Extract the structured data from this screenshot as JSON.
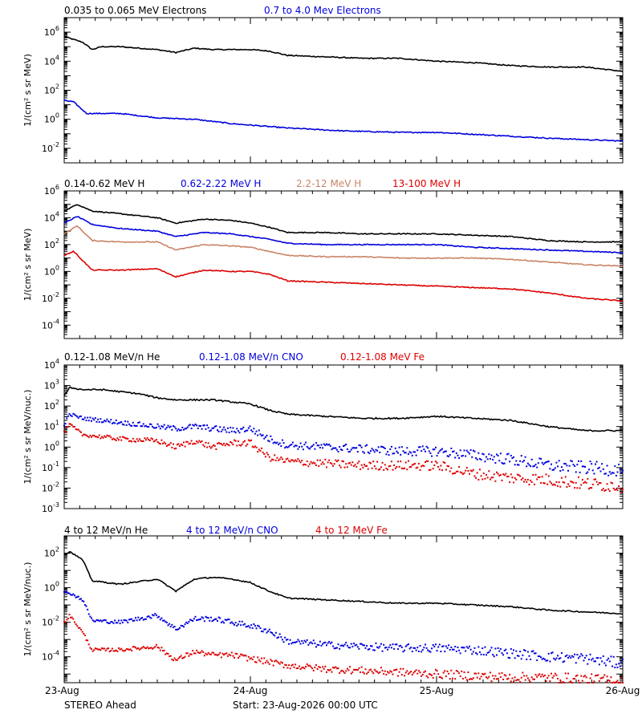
{
  "footer": {
    "spacecraft": "STEREO Ahead",
    "start": "Start: 23-Aug-2026 00:00 UTC"
  },
  "x_axis": {
    "ticks": [
      "23-Aug",
      "24-Aug",
      "25-Aug",
      "26-Aug"
    ],
    "range_days": [
      0,
      3
    ]
  },
  "colors": {
    "black": "#000000",
    "blue": "#0000dd",
    "tan": "#c88466",
    "red": "#dd0000"
  },
  "chart_data": [
    {
      "type": "line",
      "ylabel": "1/(cm² s sr MeV)",
      "ylim_log10": [
        -3,
        7
      ],
      "yticks": [
        -2,
        0,
        2,
        4,
        6
      ],
      "series": [
        {
          "name": "0.035 to 0.065 MeV Electrons",
          "color": "#000000",
          "style": "line",
          "x": [
            0,
            0.1,
            0.15,
            0.2,
            0.3,
            0.5,
            0.6,
            0.7,
            0.8,
            1.0,
            1.1,
            1.2,
            1.4,
            1.6,
            1.8,
            2.0,
            2.2,
            2.4,
            2.6,
            2.8,
            3.0
          ],
          "y": [
            5.7,
            5.3,
            4.8,
            5.0,
            5.0,
            4.8,
            4.6,
            4.9,
            4.8,
            4.8,
            4.7,
            4.4,
            4.3,
            4.2,
            4.2,
            4.0,
            3.9,
            3.7,
            3.6,
            3.6,
            3.3
          ]
        },
        {
          "name": "0.7 to 4.0 Mev Electrons",
          "color": "#0000dd",
          "style": "line",
          "x": [
            0,
            0.05,
            0.12,
            0.2,
            0.3,
            0.5,
            0.7,
            0.9,
            1.0,
            1.2,
            1.5,
            1.8,
            2.0,
            2.3,
            2.6,
            2.8,
            3.0
          ],
          "y": [
            1.3,
            1.2,
            0.4,
            0.4,
            0.4,
            0.1,
            0.0,
            -0.3,
            -0.4,
            -0.6,
            -0.8,
            -0.9,
            -0.9,
            -1.1,
            -1.3,
            -1.4,
            -1.5
          ]
        }
      ]
    },
    {
      "type": "line",
      "ylabel": "1/(cm² s sr MeV)",
      "ylim_log10": [
        -5,
        6
      ],
      "yticks": [
        -4,
        -2,
        0,
        2,
        4,
        6
      ],
      "series": [
        {
          "name": "0.14-0.62 MeV H",
          "color": "#000000",
          "style": "line",
          "x": [
            0,
            0.07,
            0.15,
            0.3,
            0.5,
            0.6,
            0.75,
            0.9,
            1.0,
            1.1,
            1.2,
            1.4,
            1.6,
            1.8,
            2.0,
            2.2,
            2.4,
            2.6,
            2.8,
            3.0
          ],
          "y": [
            4.5,
            5.0,
            4.5,
            4.3,
            4.0,
            3.6,
            3.9,
            3.8,
            3.6,
            3.3,
            2.9,
            2.9,
            2.8,
            2.8,
            2.8,
            2.7,
            2.6,
            2.3,
            2.2,
            2.2
          ]
        },
        {
          "name": "0.62-2.22 MeV H",
          "color": "#0000dd",
          "style": "line",
          "x": [
            0,
            0.07,
            0.15,
            0.3,
            0.5,
            0.6,
            0.75,
            0.9,
            1.0,
            1.1,
            1.2,
            1.4,
            1.6,
            1.8,
            2.0,
            2.2,
            2.4,
            2.6,
            2.8,
            3.0
          ],
          "y": [
            3.6,
            4.1,
            3.5,
            3.2,
            3.0,
            2.6,
            2.9,
            2.8,
            2.6,
            2.4,
            2.1,
            2.0,
            2.0,
            2.0,
            2.0,
            1.8,
            1.7,
            1.6,
            1.5,
            1.4
          ]
        },
        {
          "name": "2.2-12 MeV H",
          "color": "#c88466",
          "style": "line",
          "x": [
            0,
            0.07,
            0.15,
            0.3,
            0.5,
            0.6,
            0.75,
            0.9,
            1.0,
            1.1,
            1.2,
            1.4,
            1.6,
            1.8,
            2.0,
            2.2,
            2.4,
            2.6,
            2.8,
            3.0
          ],
          "y": [
            2.8,
            3.4,
            2.3,
            2.2,
            2.2,
            1.6,
            2.0,
            1.9,
            1.8,
            1.5,
            1.2,
            1.1,
            1.1,
            1.0,
            1.0,
            1.0,
            0.9,
            0.7,
            0.5,
            0.4
          ]
        },
        {
          "name": "13-100 MeV H",
          "color": "#dd0000",
          "style": "line",
          "x": [
            0,
            0.05,
            0.15,
            0.3,
            0.5,
            0.6,
            0.75,
            0.9,
            1.0,
            1.1,
            1.2,
            1.4,
            1.6,
            1.8,
            2.0,
            2.2,
            2.4,
            2.6,
            2.8,
            3.0
          ],
          "y": [
            1.2,
            1.5,
            0.1,
            0.1,
            0.2,
            -0.4,
            0.1,
            0.0,
            0.0,
            -0.2,
            -0.7,
            -0.8,
            -0.9,
            -1.0,
            -1.1,
            -1.2,
            -1.3,
            -1.6,
            -2.0,
            -2.2
          ]
        }
      ]
    },
    {
      "type": "scatter",
      "ylabel": "1/(cm² s sr MeV/nuc.)",
      "ylim_log10": [
        -3,
        4
      ],
      "yticks": [
        -3,
        -2,
        -1,
        0,
        1,
        2,
        3,
        4
      ],
      "series": [
        {
          "name": "0.12-1.08 MeV/n He",
          "color": "#000000",
          "style": "line",
          "x": [
            0,
            0.03,
            0.1,
            0.2,
            0.3,
            0.4,
            0.5,
            0.6,
            0.7,
            0.8,
            0.9,
            1.0,
            1.1,
            1.2,
            1.4,
            1.6,
            1.8,
            2.0,
            2.2,
            2.4,
            2.6,
            2.8,
            3.0
          ],
          "y": [
            2.5,
            2.9,
            2.8,
            2.8,
            2.7,
            2.6,
            2.4,
            2.3,
            2.3,
            2.3,
            2.2,
            2.1,
            1.8,
            1.6,
            1.5,
            1.4,
            1.4,
            1.5,
            1.4,
            1.3,
            1.0,
            0.8,
            0.8
          ]
        },
        {
          "name": "0.12-1.08 MeV/n CNO",
          "color": "#0000dd",
          "style": "dots",
          "x": [
            0,
            0.03,
            0.1,
            0.2,
            0.3,
            0.5,
            0.6,
            0.7,
            0.8,
            0.9,
            1.0,
            1.1,
            1.2,
            1.4,
            1.6,
            1.8,
            2.0,
            2.2,
            2.4,
            2.6,
            2.8,
            3.0
          ],
          "y": [
            1.1,
            1.6,
            1.4,
            1.3,
            1.2,
            1.0,
            0.9,
            1.0,
            0.9,
            0.8,
            0.9,
            0.4,
            0.1,
            0.0,
            -0.1,
            -0.2,
            -0.2,
            -0.4,
            -0.6,
            -0.9,
            -1.0,
            -1.1
          ]
        },
        {
          "name": "0.12-1.08 MeV Fe",
          "color": "#dd0000",
          "style": "dots",
          "x": [
            0,
            0.03,
            0.1,
            0.2,
            0.3,
            0.5,
            0.6,
            0.7,
            0.8,
            0.9,
            1.0,
            1.1,
            1.2,
            1.4,
            1.6,
            1.8,
            2.0,
            2.2,
            2.4,
            2.6,
            2.8,
            3.0
          ],
          "y": [
            0.7,
            1.1,
            0.6,
            0.5,
            0.4,
            0.3,
            0.0,
            0.3,
            0.0,
            0.2,
            0.2,
            -0.5,
            -0.7,
            -0.8,
            -0.9,
            -0.9,
            -0.9,
            -1.3,
            -1.5,
            -1.6,
            -1.8,
            -1.9
          ]
        }
      ]
    },
    {
      "type": "scatter",
      "ylabel": "1/(cm² s sr MeV/nuc.)",
      "ylim_log10": [
        -5.5,
        3
      ],
      "yticks": [
        -4,
        -2,
        0,
        2
      ],
      "series": [
        {
          "name": "4 to 12 MeV/n He",
          "color": "#000000",
          "style": "line",
          "x": [
            0,
            0.03,
            0.1,
            0.15,
            0.3,
            0.5,
            0.6,
            0.7,
            0.8,
            0.9,
            1.0,
            1.1,
            1.2,
            1.4,
            1.6,
            1.8,
            2.0,
            2.2,
            2.4,
            2.6,
            2.8,
            3.0
          ],
          "y": [
            1.9,
            2.1,
            1.6,
            0.4,
            0.2,
            0.5,
            -0.2,
            0.5,
            0.6,
            0.5,
            0.3,
            -0.2,
            -0.6,
            -0.7,
            -0.8,
            -0.9,
            -0.9,
            -1.0,
            -1.1,
            -1.3,
            -1.4,
            -1.5
          ]
        },
        {
          "name": "4 to 12 MeV/n CNO",
          "color": "#0000dd",
          "style": "dots",
          "x": [
            0,
            0.03,
            0.1,
            0.15,
            0.3,
            0.5,
            0.6,
            0.7,
            0.8,
            0.9,
            1.0,
            1.1,
            1.2,
            1.4,
            1.6,
            1.8,
            2.0,
            2.2,
            2.4,
            2.6,
            2.8,
            3.0
          ],
          "y": [
            -0.3,
            -0.3,
            -0.7,
            -1.9,
            -2.0,
            -1.6,
            -2.4,
            -1.8,
            -1.8,
            -2.0,
            -2.2,
            -2.5,
            -3.1,
            -3.3,
            -3.4,
            -3.5,
            -3.5,
            -3.6,
            -3.8,
            -4.0,
            -4.1,
            -4.4
          ]
        },
        {
          "name": "4 to 12 MeV Fe",
          "color": "#dd0000",
          "style": "dots",
          "x": [
            0,
            0.03,
            0.1,
            0.15,
            0.3,
            0.5,
            0.6,
            0.7,
            0.8,
            0.9,
            1.0,
            1.1,
            1.2,
            1.4,
            1.6,
            1.8,
            2.0,
            2.2,
            2.4,
            2.6,
            2.8,
            3.0
          ],
          "y": [
            -2.0,
            -1.6,
            -2.6,
            -3.6,
            -3.6,
            -3.4,
            -4.2,
            -3.7,
            -3.9,
            -3.9,
            -4.1,
            -4.3,
            -4.5,
            -4.7,
            -4.8,
            -4.9,
            -5.0,
            -5.1,
            -5.2,
            -5.2,
            -5.3,
            -5.4
          ]
        }
      ]
    }
  ]
}
